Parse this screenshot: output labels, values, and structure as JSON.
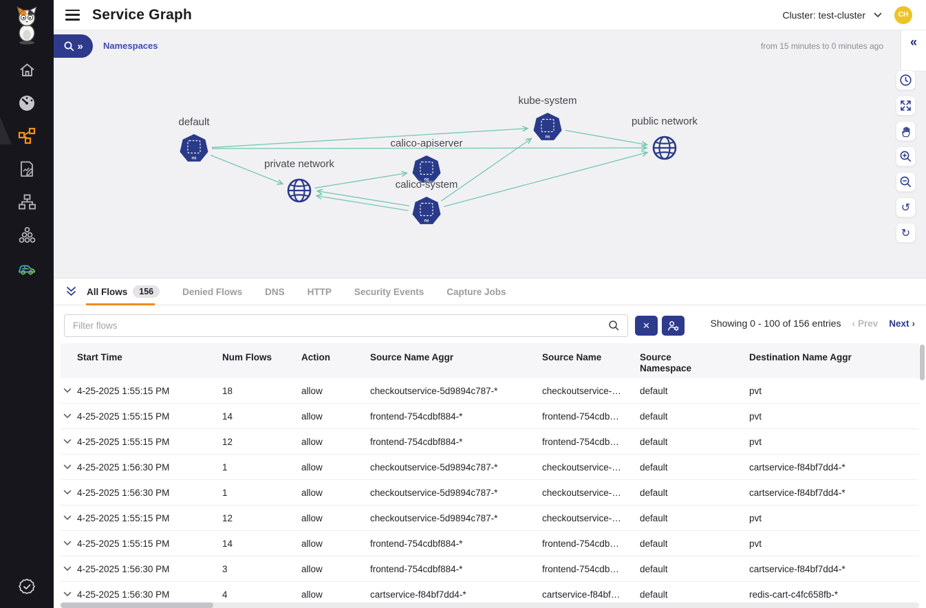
{
  "app": {
    "title": "Service Graph"
  },
  "header": {
    "cluster_selector": "Cluster: test-cluster",
    "avatar": "CH"
  },
  "toolbar": {
    "breadcrumb": "Namespaces",
    "time_range": "from 15 minutes to 0 minutes ago"
  },
  "icons": {
    "collapse_left": "«",
    "expand_right": "»",
    "clear": "✕",
    "chevron_left": "‹",
    "chevron_right": "›",
    "undo": "↺",
    "refresh": "↻"
  },
  "sidebar": {
    "items": [
      {
        "name": "home"
      },
      {
        "name": "dashboard"
      },
      {
        "name": "service-graph",
        "active": true
      },
      {
        "name": "policies"
      },
      {
        "name": "endpoints"
      },
      {
        "name": "components"
      },
      {
        "name": "vehicle"
      }
    ],
    "bottom_item": {
      "name": "compliance-badge"
    }
  },
  "graph": {
    "node_badge": "ns",
    "nodes": [
      {
        "id": "default",
        "label": "default",
        "type": "namespace"
      },
      {
        "id": "private-network",
        "label": "private network",
        "type": "network"
      },
      {
        "id": "calico-apiserver",
        "label": "calico-apiserver",
        "type": "namespace"
      },
      {
        "id": "calico-system",
        "label": "calico-system",
        "type": "namespace"
      },
      {
        "id": "kube-system",
        "label": "kube-system",
        "type": "namespace"
      },
      {
        "id": "public-network",
        "label": "public network",
        "type": "network"
      }
    ],
    "edges": [
      {
        "from": "default",
        "to": "private-network"
      },
      {
        "from": "default",
        "to": "kube-system"
      },
      {
        "from": "default",
        "to": "public-network"
      },
      {
        "from": "private-network",
        "to": "calico-apiserver"
      },
      {
        "from": "calico-system",
        "to": "private-network"
      },
      {
        "from": "calico-system",
        "to": "private-network"
      },
      {
        "from": "calico-system",
        "to": "kube-system"
      },
      {
        "from": "kube-system",
        "to": "public-network"
      },
      {
        "from": "calico-system",
        "to": "public-network"
      }
    ],
    "colors": {
      "node": "#2a3a8a",
      "edge": "#74c7b2"
    }
  },
  "graph_toolbar": {
    "buttons": [
      "time",
      "fit-screen",
      "pan",
      "zoom-in",
      "zoom-out",
      "undo",
      "refresh"
    ]
  },
  "flows_panel": {
    "tabs": [
      {
        "label": "All Flows",
        "badge": "156",
        "active": true
      },
      {
        "label": "Denied Flows"
      },
      {
        "label": "DNS"
      },
      {
        "label": "HTTP"
      },
      {
        "label": "Security Events"
      },
      {
        "label": "Capture Jobs"
      }
    ],
    "filter": {
      "placeholder": "Filter flows"
    },
    "pagination": {
      "summary": "Showing 0 - 100 of 156 entries",
      "prev_label": "Prev",
      "next_label": "Next"
    },
    "table": {
      "columns": [
        "Start Time",
        "Num Flows",
        "Action",
        "Source Name Aggr",
        "Source Name",
        "Source Namespace",
        "Destination Name Aggr"
      ],
      "rows": [
        [
          "4-25-2025 1:55:15 PM",
          "18",
          "allow",
          "checkoutservice-5d9894c787-*",
          "checkoutservice-…",
          "default",
          "pvt"
        ],
        [
          "4-25-2025 1:55:15 PM",
          "14",
          "allow",
          "frontend-754cdbf884-*",
          "frontend-754cdb…",
          "default",
          "pvt"
        ],
        [
          "4-25-2025 1:55:15 PM",
          "12",
          "allow",
          "frontend-754cdbf884-*",
          "frontend-754cdb…",
          "default",
          "pvt"
        ],
        [
          "4-25-2025 1:56:30 PM",
          "1",
          "allow",
          "checkoutservice-5d9894c787-*",
          "checkoutservice-…",
          "default",
          "cartservice-f84bf7dd4-*"
        ],
        [
          "4-25-2025 1:56:30 PM",
          "1",
          "allow",
          "checkoutservice-5d9894c787-*",
          "checkoutservice-…",
          "default",
          "cartservice-f84bf7dd4-*"
        ],
        [
          "4-25-2025 1:55:15 PM",
          "12",
          "allow",
          "checkoutservice-5d9894c787-*",
          "checkoutservice-…",
          "default",
          "pvt"
        ],
        [
          "4-25-2025 1:55:15 PM",
          "14",
          "allow",
          "frontend-754cdbf884-*",
          "frontend-754cdb…",
          "default",
          "pvt"
        ],
        [
          "4-25-2025 1:56:30 PM",
          "3",
          "allow",
          "frontend-754cdbf884-*",
          "frontend-754cdb…",
          "default",
          "cartservice-f84bf7dd4-*"
        ],
        [
          "4-25-2025 1:56:30 PM",
          "4",
          "allow",
          "cartservice-f84bf7dd4-*",
          "cartservice-f84bf…",
          "default",
          "redis-cart-c4fc658fb-*"
        ]
      ]
    }
  },
  "accent_colors": {
    "orange": "#f28a1d",
    "navy": "#2e3a8c",
    "avatar_yellow": "#eec32a"
  }
}
